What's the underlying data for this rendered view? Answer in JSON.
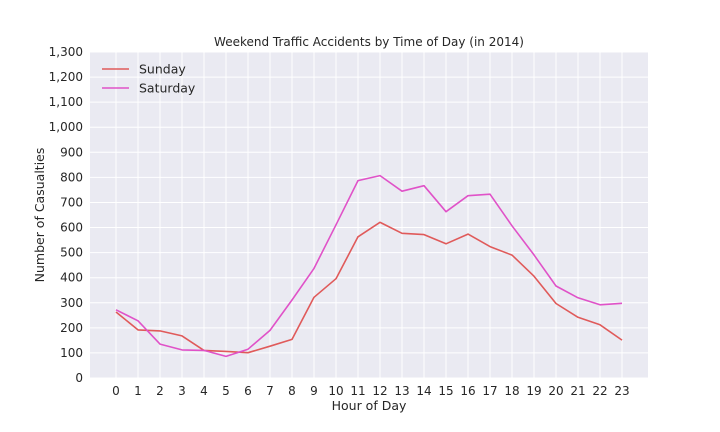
{
  "chart_data": {
    "type": "line",
    "title": "Weekend Traffic Accidents by Time of Day (in 2014)",
    "xlabel": "Hour of Day",
    "ylabel": "Number of Casualties",
    "x": [
      0,
      1,
      2,
      3,
      4,
      5,
      6,
      7,
      8,
      9,
      10,
      11,
      12,
      13,
      14,
      15,
      16,
      17,
      18,
      19,
      20,
      21,
      22,
      23
    ],
    "ylim": [
      0,
      1300
    ],
    "yticks": [
      0,
      100,
      200,
      300,
      400,
      500,
      600,
      700,
      800,
      900,
      1000,
      1100,
      1200,
      1300
    ],
    "ytick_labels": [
      "0",
      "100",
      "200",
      "300",
      "400",
      "500",
      "600",
      "700",
      "800",
      "900",
      "1,000",
      "1,100",
      "1,200",
      "1,300"
    ],
    "grid": true,
    "legend_position": "top-left",
    "background_color": "#eaeaf2",
    "series": [
      {
        "name": "Sunday",
        "color": "#e05a5a",
        "values": [
          263,
          192,
          188,
          168,
          110,
          106,
          101,
          127,
          154,
          322,
          396,
          563,
          621,
          577,
          572,
          535,
          574,
          524,
          490,
          406,
          297,
          242,
          212,
          151
        ]
      },
      {
        "name": "Saturday",
        "color": "#e052c8",
        "values": [
          272,
          228,
          135,
          112,
          110,
          86,
          115,
          190,
          311,
          437,
          611,
          787,
          807,
          745,
          767,
          663,
          727,
          733,
          607,
          491,
          367,
          320,
          292,
          298
        ]
      }
    ]
  }
}
